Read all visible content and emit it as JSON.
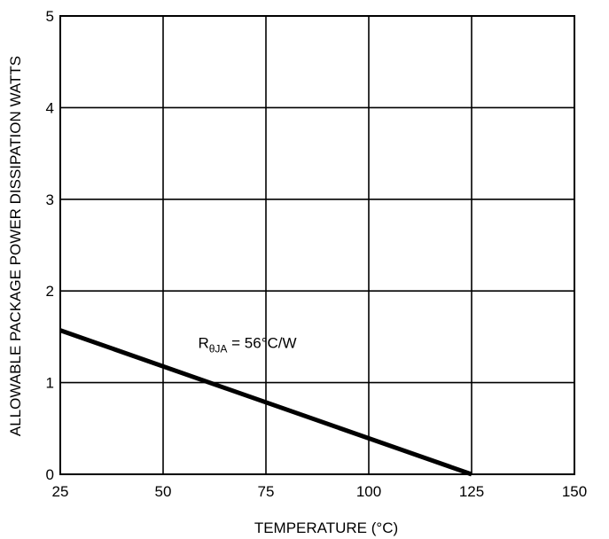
{
  "chart_data": {
    "type": "line",
    "title": "",
    "xlabel": "TEMPERATURE (°C)",
    "ylabel": "ALLOWABLE PACKAGE POWER DISSIPATION WATTS",
    "xlim": [
      25,
      150
    ],
    "ylim": [
      0,
      5
    ],
    "xticks": [
      25,
      50,
      75,
      100,
      125,
      150
    ],
    "yticks": [
      0,
      1,
      2,
      3,
      4,
      5
    ],
    "grid": true,
    "series": [
      {
        "name": "",
        "x": [
          25,
          125
        ],
        "y": [
          1.57,
          0
        ]
      }
    ],
    "annotation": {
      "main": "R",
      "sub": "θJA",
      "rest": " = 56°C/W",
      "anchor": {
        "x": 58.5,
        "y": 1.38
      }
    }
  }
}
